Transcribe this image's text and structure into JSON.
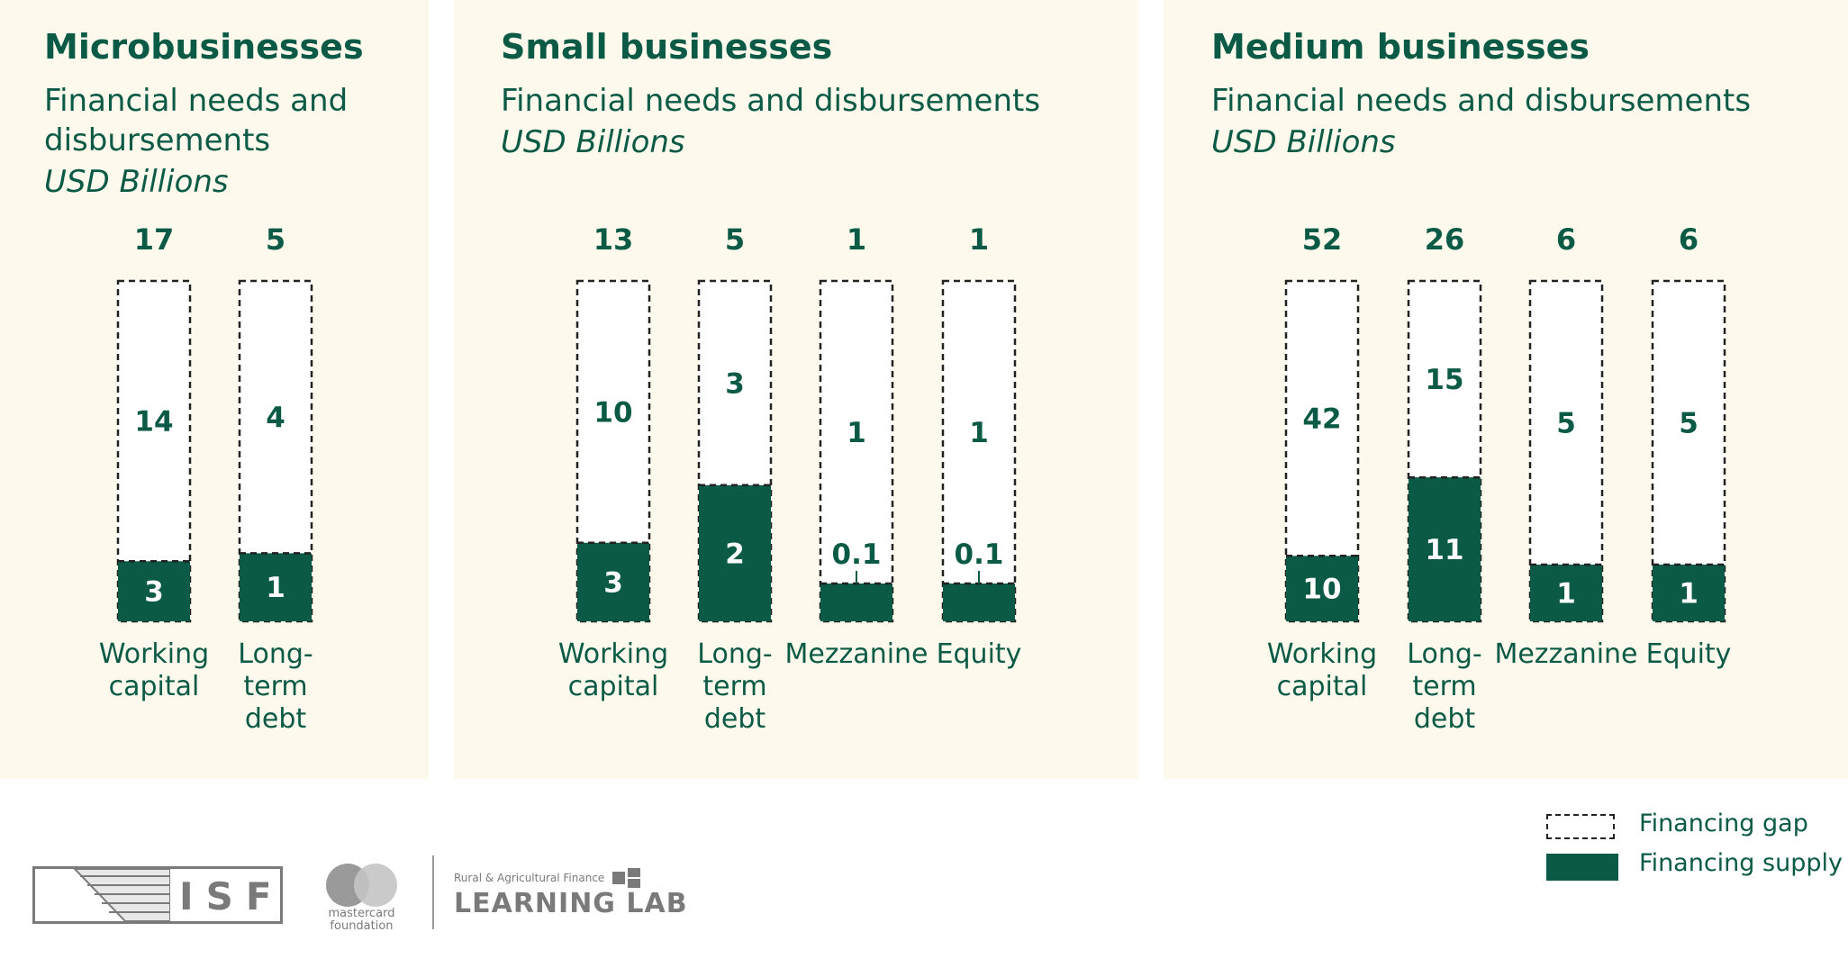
{
  "colors": {
    "supply": "#0b5a45",
    "gap_border": "#222222",
    "panel_bg": "#fdf9ec",
    "text": "#0b5a45"
  },
  "legend": {
    "gap_label": "Financing gap",
    "supply_label": "Financing supply"
  },
  "logos": {
    "isf": "ISF",
    "mastercard_line1": "mastercard",
    "mastercard_line2": "foundation",
    "learning_lab_small": "Rural & Agricultural Finance",
    "learning_lab_big": "LEARNING LAB"
  },
  "chart_data": [
    {
      "type": "bar",
      "stacked": true,
      "title": "Microbusinesses",
      "subtitle": "Financial needs and disbursements",
      "unit": "USD Billions",
      "categories": [
        [
          "Working",
          "capital"
        ],
        [
          "Long-",
          "term",
          "debt"
        ]
      ],
      "totals": [
        "17",
        "5"
      ],
      "series": [
        {
          "name": "Financing supply",
          "values": [
            3,
            1
          ],
          "labels": [
            "3",
            "1"
          ]
        },
        {
          "name": "Financing gap",
          "values": [
            14,
            4
          ],
          "labels": [
            "14",
            "4"
          ]
        }
      ]
    },
    {
      "type": "bar",
      "stacked": true,
      "title": "Small businesses",
      "subtitle": "Financial needs and disbursements",
      "unit": "USD Billions",
      "categories": [
        [
          "Working",
          "capital"
        ],
        [
          "Long-",
          "term",
          "debt"
        ],
        [
          "Mezzanine"
        ],
        [
          "Equity"
        ]
      ],
      "totals": [
        "13",
        "5",
        "1",
        "1"
      ],
      "series": [
        {
          "name": "Financing supply",
          "values": [
            3,
            2,
            0.1,
            0.1
          ],
          "labels": [
            "3",
            "2",
            "0.1",
            "0.1"
          ]
        },
        {
          "name": "Financing gap",
          "values": [
            10,
            3,
            1,
            1
          ],
          "labels": [
            "10",
            "3",
            "1",
            "1"
          ]
        }
      ]
    },
    {
      "type": "bar",
      "stacked": true,
      "title": "Medium businesses",
      "subtitle": "Financial needs and disbursements",
      "unit": "USD Billions",
      "categories": [
        [
          "Working",
          "capital"
        ],
        [
          "Long-",
          "term",
          "debt"
        ],
        [
          "Mezzanine"
        ],
        [
          "Equity"
        ]
      ],
      "totals": [
        "52",
        "26",
        "6",
        "6"
      ],
      "series": [
        {
          "name": "Financing supply",
          "values": [
            10,
            11,
            1,
            1
          ],
          "labels": [
            "10",
            "11",
            "1",
            "1"
          ]
        },
        {
          "name": "Financing gap",
          "values": [
            42,
            15,
            5,
            5
          ],
          "labels": [
            "42",
            "15",
            "5",
            "5"
          ]
        }
      ]
    }
  ]
}
